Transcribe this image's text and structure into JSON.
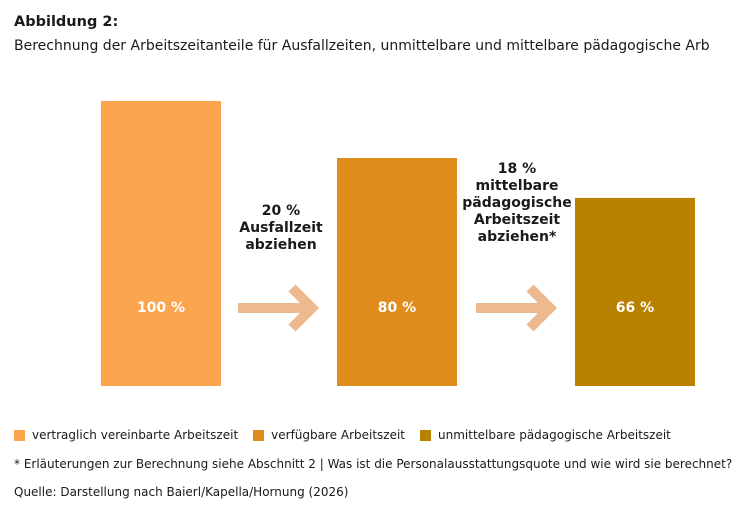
{
  "title": "Abbildung 2:",
  "subtitle": "Berechnung der Arbeitszeitanteile für Ausfallzeiten, unmittelbare und mittelbare pädagogische Arb",
  "colors": {
    "bar1": "#FBA54F",
    "bar2": "#DF8C1C",
    "bar3": "#B98100",
    "arrow": "#EDB98E"
  },
  "chart_data": {
    "type": "bar",
    "categories": [
      "vertraglich vereinbarte Arbeitszeit",
      "verfügbare Arbeitszeit",
      "unmittelbare pädagogische Arbeitszeit"
    ],
    "values": [
      100,
      80,
      66
    ],
    "data_labels": [
      "100 %",
      "80 %",
      "66 %"
    ],
    "ylim": [
      0,
      100
    ],
    "grid": false,
    "legend_position": "bottom-left",
    "annotations": [
      {
        "lines": [
          "20 %",
          "Ausfallzeit",
          "abziehen"
        ]
      },
      {
        "lines": [
          "18 %",
          "mittelbare",
          "pädagogische",
          "Arbeitszeit",
          "abziehen*"
        ]
      }
    ]
  },
  "legend": [
    {
      "label": "vertraglich vereinbarte Arbeitszeit",
      "color": "#FBA54F"
    },
    {
      "label": "verfügbare Arbeitszeit",
      "color": "#DF8C1C"
    },
    {
      "label": "unmittelbare pädagogische Arbeitszeit",
      "color": "#B98100"
    }
  ],
  "footnote": "* Erläuterungen zur Berechnung siehe Abschnitt 2 | Was ist die Personalausstattungsquote und wie wird sie berechnet?",
  "source": "Quelle: Darstellung nach Baierl/Kapella/Hornung (2026)"
}
